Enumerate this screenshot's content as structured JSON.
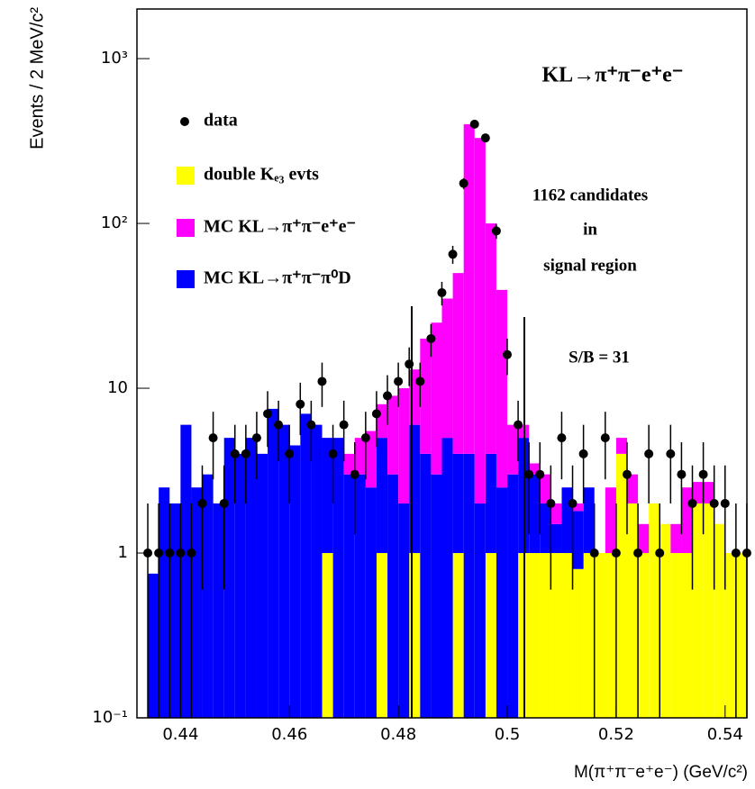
{
  "chart_data": {
    "type": "histogram",
    "title": "KL→π⁺π⁻e⁺e⁻",
    "xlabel": "M(π⁺π⁻e⁺e⁻) (GeV/c²)",
    "ylabel": "Events / 2 MeV/c²",
    "annotations": [
      "1162 candidates",
      "in",
      "signal region",
      "S/B = 31"
    ],
    "log_y": true,
    "xlim": [
      0.432,
      0.544
    ],
    "ylim": [
      0.1,
      2000
    ],
    "xticks": [
      0.44,
      0.46,
      0.48,
      0.5,
      0.52,
      0.54
    ],
    "yticks": [
      {
        "value": 0.1,
        "label": "10⁻¹"
      },
      1,
      10,
      {
        "value": 100,
        "label": "10²"
      },
      {
        "value": 1000,
        "label": "10³"
      }
    ],
    "bins": [
      0.432,
      0.434,
      0.436,
      0.438,
      0.44,
      0.442,
      0.444,
      0.446,
      0.448,
      0.45,
      0.452,
      0.454,
      0.456,
      0.458,
      0.46,
      0.462,
      0.464,
      0.466,
      0.468,
      0.47,
      0.472,
      0.474,
      0.476,
      0.478,
      0.48,
      0.482,
      0.484,
      0.486,
      0.488,
      0.49,
      0.492,
      0.494,
      0.496,
      0.498,
      0.5,
      0.502,
      0.504,
      0.506,
      0.508,
      0.51,
      0.512,
      0.514,
      0.516,
      0.518,
      0.52,
      0.522,
      0.524,
      0.526,
      0.528,
      0.53,
      0.532,
      0.534,
      0.536,
      0.538,
      0.54,
      0.542,
      0.544
    ],
    "series": [
      {
        "name": "data",
        "color": "#000000",
        "values": [
          1,
          1,
          1,
          1,
          1,
          2,
          5,
          2,
          4,
          4,
          5,
          7,
          6,
          4,
          8,
          6,
          11,
          4,
          6,
          3,
          5,
          7,
          9,
          11,
          14,
          11,
          20,
          38,
          65,
          175,
          400,
          330,
          90,
          16,
          6,
          3,
          3,
          2,
          5,
          2,
          4,
          1,
          5,
          1,
          3,
          1,
          4,
          1,
          4,
          3,
          2,
          3,
          2,
          2,
          1,
          1
        ],
        "errors": [
          1,
          1,
          1,
          1,
          1,
          1.4,
          2.2,
          1.4,
          2,
          2,
          2.2,
          2.6,
          2.4,
          2,
          2.8,
          2.4,
          3.3,
          2,
          2.4,
          1.7,
          2.2,
          2.6,
          3,
          3.3,
          3.7,
          3.3,
          4.5,
          6.2,
          8.1,
          13.2,
          20,
          18.2,
          9.5,
          4,
          2.4,
          1.7,
          1.7,
          1.4,
          2.2,
          1.4,
          2,
          1,
          2.2,
          1,
          1.7,
          1,
          2,
          1,
          2,
          1.7,
          1.4,
          1.7,
          1.4,
          1.4,
          1,
          1
        ]
      },
      {
        "name": "double Kₑ₃ evts",
        "color": "#ffff00",
        "values": [
          0,
          0,
          0,
          0,
          0,
          0,
          0,
          0,
          0,
          0,
          0,
          0,
          0,
          0,
          0,
          0,
          0,
          1,
          0,
          0,
          0,
          0,
          1,
          0,
          0,
          1,
          0,
          0,
          0,
          1,
          0,
          0,
          1,
          0,
          0,
          1,
          1,
          1,
          1,
          1,
          0.8,
          1,
          1,
          1,
          4,
          2,
          1,
          2,
          1.5,
          1,
          1,
          2,
          2,
          1.5,
          1,
          1
        ]
      },
      {
        "name": "MC KL→π⁺π⁻π⁰D",
        "color": "#0000ff",
        "values": [
          0,
          0.75,
          2.5,
          2,
          6,
          2.5,
          3,
          2,
          5,
          4,
          5,
          4,
          7.5,
          6,
          4.5,
          7,
          6,
          4,
          5,
          3,
          3,
          2.5,
          4,
          3,
          2,
          5,
          4,
          3,
          5,
          3,
          4,
          2,
          3,
          2.5,
          3,
          4,
          2,
          1,
          0.5,
          1.5,
          1,
          1.5,
          0,
          0,
          0,
          0,
          0,
          0,
          0,
          0,
          0,
          0,
          0,
          0,
          0,
          0
        ]
      },
      {
        "name": "MC KL→π⁺π⁻e⁺e⁻",
        "color": "#ff00ff",
        "values": [
          0,
          0,
          0,
          0,
          0,
          0,
          0,
          0,
          0,
          0,
          0,
          0,
          0,
          0,
          0,
          0,
          0,
          0,
          0,
          1,
          2,
          3,
          3,
          6,
          8,
          7,
          16,
          22,
          30,
          46,
          396,
          328,
          96,
          37,
          3,
          1,
          0.5,
          1,
          0.5,
          0,
          0.2,
          0,
          0,
          1.5,
          1,
          1,
          0.5,
          0,
          0,
          0.5,
          1.5,
          0.7,
          0.7,
          0,
          0,
          0
        ]
      }
    ]
  }
}
